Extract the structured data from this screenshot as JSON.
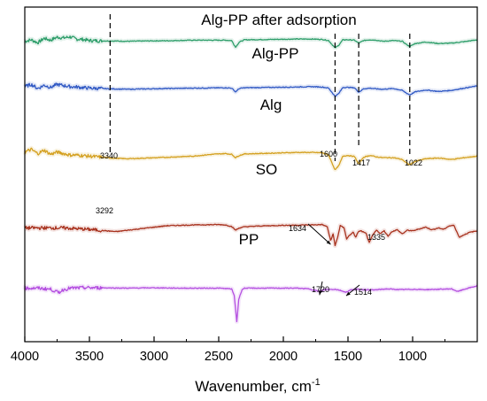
{
  "chart_data": {
    "type": "line",
    "xlabel": "Wavenumber, cm",
    "xlabel_sup": "-1",
    "xlim": [
      4000,
      500
    ],
    "x_ticks": [
      4000,
      3500,
      3000,
      2500,
      2000,
      1500,
      1000
    ],
    "x_tick_labels": [
      "4000",
      "3500",
      "3000",
      "2500",
      "2000",
      "1500",
      "1000"
    ],
    "y_axis_shown": false,
    "grid": false,
    "guide_lines": [
      3340,
      1600,
      1417,
      1022
    ],
    "series": [
      {
        "name": "Alg-PP after adsorption",
        "color": "#2e9e6a",
        "offset": 0.1,
        "points": [
          [
            4000,
            -0.2
          ],
          [
            3950,
            0.2
          ],
          [
            3900,
            -0.6
          ],
          [
            3850,
            0.6
          ],
          [
            3800,
            0.1
          ],
          [
            3750,
            0.9
          ],
          [
            3700,
            0.7
          ],
          [
            3650,
            1.0
          ],
          [
            3600,
            0.4
          ],
          [
            3550,
            0.3
          ],
          [
            3500,
            0.0
          ],
          [
            3400,
            -0.1
          ],
          [
            3340,
            -0.1
          ],
          [
            3200,
            -0.2
          ],
          [
            3050,
            -0.1
          ],
          [
            2900,
            -0.05
          ],
          [
            2700,
            0.1
          ],
          [
            2450,
            0.1
          ],
          [
            2400,
            0.0
          ],
          [
            2370,
            -1.8
          ],
          [
            2340,
            -0.4
          ],
          [
            2300,
            0.2
          ],
          [
            2100,
            0.3
          ],
          [
            1900,
            0.4
          ],
          [
            1780,
            0.4
          ],
          [
            1700,
            0.3
          ],
          [
            1650,
            0.0
          ],
          [
            1600,
            -2.0
          ],
          [
            1570,
            -1.2
          ],
          [
            1540,
            0.2
          ],
          [
            1500,
            0.2
          ],
          [
            1450,
            0.1
          ],
          [
            1417,
            -0.7
          ],
          [
            1380,
            0.0
          ],
          [
            1330,
            0.2
          ],
          [
            1280,
            0.1
          ],
          [
            1230,
            -0.2
          ],
          [
            1150,
            0.0
          ],
          [
            1080,
            -0.2
          ],
          [
            1050,
            -1.0
          ],
          [
            1022,
            -1.6
          ],
          [
            980,
            -0.8
          ],
          [
            900,
            -0.4
          ],
          [
            800,
            -0.8
          ],
          [
            700,
            -0.7
          ],
          [
            600,
            -0.3
          ],
          [
            500,
            0.2
          ]
        ]
      },
      {
        "name": "Alg-PP",
        "color": "#2f58c4",
        "offset": 0.24,
        "points": [
          [
            4000,
            0.2
          ],
          [
            3950,
            0.8
          ],
          [
            3900,
            -0.3
          ],
          [
            3850,
            0.6
          ],
          [
            3800,
            0.0
          ],
          [
            3750,
            0.8
          ],
          [
            3700,
            0.5
          ],
          [
            3650,
            0.2
          ],
          [
            3600,
            0.1
          ],
          [
            3500,
            -0.2
          ],
          [
            3400,
            -0.3
          ],
          [
            3340,
            -0.4
          ],
          [
            3200,
            -0.5
          ],
          [
            3050,
            -0.4
          ],
          [
            2900,
            -0.3
          ],
          [
            2700,
            -0.2
          ],
          [
            2450,
            -0.1
          ],
          [
            2400,
            -0.2
          ],
          [
            2370,
            -1.2
          ],
          [
            2340,
            -0.3
          ],
          [
            2300,
            -0.1
          ],
          [
            2100,
            0.0
          ],
          [
            1900,
            0.1
          ],
          [
            1780,
            0.2
          ],
          [
            1700,
            0.1
          ],
          [
            1650,
            -0.2
          ],
          [
            1600,
            -2.4
          ],
          [
            1570,
            -1.6
          ],
          [
            1540,
            0.0
          ],
          [
            1500,
            0.0
          ],
          [
            1450,
            -0.1
          ],
          [
            1417,
            -1.3
          ],
          [
            1380,
            -0.4
          ],
          [
            1330,
            -0.2
          ],
          [
            1280,
            -0.4
          ],
          [
            1230,
            -0.5
          ],
          [
            1150,
            -0.3
          ],
          [
            1080,
            -0.8
          ],
          [
            1050,
            -1.5
          ],
          [
            1022,
            -2.0
          ],
          [
            980,
            -1.2
          ],
          [
            900,
            -0.7
          ],
          [
            800,
            -1.1
          ],
          [
            700,
            -0.8
          ],
          [
            600,
            -0.2
          ],
          [
            500,
            0.4
          ]
        ]
      },
      {
        "name": "Alg",
        "color": "#d4a020",
        "offset": 0.44,
        "points": [
          [
            4000,
            0.6
          ],
          [
            3950,
            1.3
          ],
          [
            3900,
            0.2
          ],
          [
            3850,
            1.1
          ],
          [
            3800,
            0.0
          ],
          [
            3750,
            0.6
          ],
          [
            3700,
            0.2
          ],
          [
            3650,
            -0.2
          ],
          [
            3600,
            -0.2
          ],
          [
            3500,
            -0.5
          ],
          [
            3400,
            -0.8
          ],
          [
            3340,
            -1.0
          ],
          [
            3200,
            -1.2
          ],
          [
            3050,
            -1.0
          ],
          [
            2900,
            -0.8
          ],
          [
            2700,
            -0.5
          ],
          [
            2550,
            0.0
          ],
          [
            2450,
            0.2
          ],
          [
            2400,
            0.0
          ],
          [
            2370,
            -0.9
          ],
          [
            2340,
            -0.3
          ],
          [
            2300,
            0.1
          ],
          [
            2100,
            0.3
          ],
          [
            1900,
            0.5
          ],
          [
            1780,
            0.5
          ],
          [
            1700,
            0.4
          ],
          [
            1650,
            -0.2
          ],
          [
            1600,
            -4.2
          ],
          [
            1570,
            -3.0
          ],
          [
            1540,
            -0.5
          ],
          [
            1500,
            -0.3
          ],
          [
            1450,
            -0.6
          ],
          [
            1417,
            -2.6
          ],
          [
            1380,
            -0.8
          ],
          [
            1330,
            -0.3
          ],
          [
            1280,
            -0.7
          ],
          [
            1230,
            -0.9
          ],
          [
            1150,
            -0.9
          ],
          [
            1080,
            -1.4
          ],
          [
            1050,
            -2.3
          ],
          [
            1022,
            -2.8
          ],
          [
            980,
            -1.9
          ],
          [
            900,
            -1.2
          ],
          [
            800,
            -1.0
          ],
          [
            700,
            -1.4
          ],
          [
            600,
            -0.9
          ],
          [
            500,
            -0.5
          ]
        ]
      },
      {
        "name": "SO",
        "color": "#a8321e",
        "offset": 0.66,
        "points": [
          [
            4000,
            0.0
          ],
          [
            3900,
            0.0
          ],
          [
            3800,
            0.0
          ],
          [
            3700,
            0.0
          ],
          [
            3600,
            -0.2
          ],
          [
            3500,
            -0.4
          ],
          [
            3400,
            -0.7
          ],
          [
            3292,
            -1.0
          ],
          [
            3200,
            -0.6
          ],
          [
            3100,
            -0.2
          ],
          [
            3000,
            0.2
          ],
          [
            2900,
            0.6
          ],
          [
            2700,
            0.8
          ],
          [
            2500,
            0.9
          ],
          [
            2450,
            0.8
          ],
          [
            2400,
            0.4
          ],
          [
            2370,
            -0.6
          ],
          [
            2340,
            0.0
          ],
          [
            2300,
            0.3
          ],
          [
            2200,
            0.5
          ],
          [
            2000,
            0.7
          ],
          [
            1800,
            0.8
          ],
          [
            1700,
            0.9
          ],
          [
            1660,
            0.3
          ],
          [
            1634,
            -3.5
          ],
          [
            1615,
            -1.5
          ],
          [
            1600,
            -4.8
          ],
          [
            1580,
            -2.5
          ],
          [
            1560,
            0.6
          ],
          [
            1530,
            0.0
          ],
          [
            1510,
            -3.0
          ],
          [
            1490,
            -2.0
          ],
          [
            1460,
            -1.2
          ],
          [
            1440,
            -2.5
          ],
          [
            1420,
            -1.0
          ],
          [
            1400,
            -0.8
          ],
          [
            1360,
            -1.5
          ],
          [
            1335,
            -4.0
          ],
          [
            1310,
            -2.0
          ],
          [
            1280,
            -0.6
          ],
          [
            1250,
            -1.5
          ],
          [
            1220,
            -0.8
          ],
          [
            1190,
            -2.2
          ],
          [
            1160,
            -1.0
          ],
          [
            1120,
            -0.5
          ],
          [
            1080,
            -1.6
          ],
          [
            1040,
            -0.6
          ],
          [
            1000,
            -0.8
          ],
          [
            960,
            -0.4
          ],
          [
            900,
            0.2
          ],
          [
            850,
            -0.5
          ],
          [
            800,
            0.0
          ],
          [
            760,
            -0.4
          ],
          [
            720,
            0.5
          ],
          [
            680,
            0.7
          ],
          [
            640,
            -2.5
          ],
          [
            600,
            -1.8
          ],
          [
            560,
            -1.2
          ],
          [
            500,
            -0.8
          ]
        ]
      },
      {
        "name": "PP",
        "color": "#b44ee0",
        "offset": 0.84,
        "points": [
          [
            4000,
            0.0
          ],
          [
            3900,
            0.0
          ],
          [
            3800,
            -0.3
          ],
          [
            3740,
            -1.2
          ],
          [
            3700,
            -0.4
          ],
          [
            3650,
            0.0
          ],
          [
            3550,
            0.1
          ],
          [
            3400,
            0.1
          ],
          [
            3200,
            0.0
          ],
          [
            3000,
            0.1
          ],
          [
            2800,
            0.0
          ],
          [
            2500,
            0.0
          ],
          [
            2400,
            -0.2
          ],
          [
            2380,
            -2.0
          ],
          [
            2360,
            -9.0
          ],
          [
            2345,
            -3.0
          ],
          [
            2320,
            -0.4
          ],
          [
            2300,
            0.0
          ],
          [
            2100,
            0.0
          ],
          [
            1900,
            0.0
          ],
          [
            1800,
            -0.2
          ],
          [
            1720,
            -0.9
          ],
          [
            1680,
            -0.4
          ],
          [
            1600,
            -0.3
          ],
          [
            1560,
            -0.6
          ],
          [
            1514,
            -1.1
          ],
          [
            1480,
            -0.5
          ],
          [
            1450,
            -0.3
          ],
          [
            1300,
            -0.5
          ],
          [
            1200,
            -0.2
          ],
          [
            1100,
            -0.4
          ],
          [
            1000,
            -0.3
          ],
          [
            900,
            -0.4
          ],
          [
            800,
            -0.3
          ],
          [
            700,
            -0.2
          ],
          [
            650,
            -0.9
          ],
          [
            600,
            -0.3
          ],
          [
            550,
            0.2
          ],
          [
            500,
            0.6
          ]
        ]
      }
    ],
    "peak_annotations": [
      {
        "text": "3340",
        "x": 3340,
        "series": 2
      },
      {
        "text": "1600",
        "x": 1600,
        "series": 2
      },
      {
        "text": "1417",
        "x": 1417,
        "series": 2
      },
      {
        "text": "1022",
        "x": 1022,
        "series": 2
      },
      {
        "text": "3292",
        "x": 3292,
        "series": 3
      },
      {
        "text": "1634",
        "x": 1634,
        "series": 3
      },
      {
        "text": "1335",
        "x": 1335,
        "series": 3
      },
      {
        "text": "1720",
        "x": 1720,
        "series": 4
      },
      {
        "text": "1514",
        "x": 1514,
        "series": 4
      }
    ]
  }
}
